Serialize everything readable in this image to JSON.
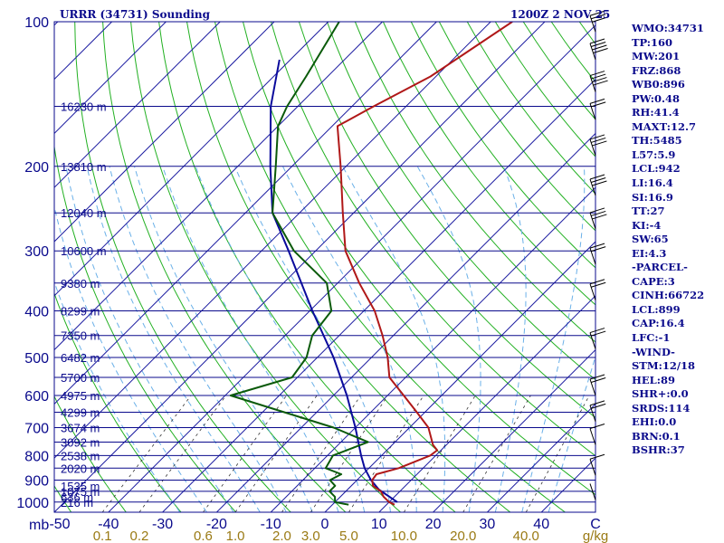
{
  "header": {
    "title": "URRR (34731) Sounding",
    "valid_time": "1200Z  2 NOV 25"
  },
  "indices": [
    "WMO:34731",
    "TP:160",
    "MW:201",
    "FRZ:868",
    "WB0:896",
    "PW:0.48",
    "RH:41.4",
    "MAXT:12.7",
    "TH:5485",
    "L57:5.9",
    "LCL:942",
    "LI:16.4",
    "SI:16.9",
    "TT:27",
    "KI:-4",
    "SW:65",
    "EI:4.3",
    "-PARCEL-",
    "CAPE:3",
    "CINH:66722",
    "LCL:899",
    "CAP:16.4",
    "LFC:-1",
    "-WIND-",
    "STM:12/18",
    "HEL:89",
    "SHR+:0.0",
    "SRDS:114",
    "EHI:0.0",
    "BRN:0.1",
    "BSHR:37"
  ],
  "colors": {
    "isobar": "#0a0a8c",
    "isotherm": "#1a1aa0",
    "dry_adiabat": "#22b022",
    "moist_adiabat": "#6ab0e8",
    "mixing_ratio": "#333333",
    "temperature": "#b01818",
    "dewpoint": "#0a5a0a",
    "parcel": "#0a0a9c",
    "wind_barb": "#000000",
    "label": "#0a0a8c",
    "mixing_label": "#9a7a14"
  },
  "chart_data": {
    "type": "skew-t",
    "title": "URRR (34731) Sounding",
    "x_unit": "C",
    "pressure_range": [
      1050,
      100
    ],
    "temperature_range_at_bottom": [
      -50,
      50
    ],
    "pressure_axis_ticks": [
      "100",
      "200",
      "300",
      "400",
      "500",
      "600",
      "700",
      "800",
      "900",
      "1000"
    ],
    "pressure_axis_label": "mb",
    "temperature_axis_ticks": [
      "-50",
      "-40",
      "-30",
      "-20",
      "-10",
      "0",
      "10",
      "20",
      "30",
      "40",
      "C"
    ],
    "mixing_ratio_ticks": [
      "0.1",
      "0.2",
      "0.6",
      "1.0",
      "2.0",
      "3.0",
      "5.0",
      "10.0",
      "20.0",
      "40.0",
      "g/kg"
    ],
    "height_levels": [
      {
        "p": 1000,
        "label": "216 m"
      },
      {
        "p": 975,
        "label": "636 m"
      },
      {
        "p": 950,
        "label": "1075 m"
      },
      {
        "p": 925,
        "label": "1535 m"
      },
      {
        "p": 850,
        "label": "2020 m"
      },
      {
        "p": 800,
        "label": "2538 m"
      },
      {
        "p": 750,
        "label": "3092 m"
      },
      {
        "p": 700,
        "label": "3674 m"
      },
      {
        "p": 650,
        "label": "4299 m"
      },
      {
        "p": 600,
        "label": "4975 m"
      },
      {
        "p": 550,
        "label": "5700 m"
      },
      {
        "p": 500,
        "label": "6482 m"
      },
      {
        "p": 450,
        "label": "7350 m"
      },
      {
        "p": 400,
        "label": "8299 m"
      },
      {
        "p": 350,
        "label": "9380 m"
      },
      {
        "p": 300,
        "label": "10600 m"
      },
      {
        "p": 250,
        "label": "12040 m"
      },
      {
        "p": 200,
        "label": "13810 m"
      },
      {
        "p": 150,
        "label": "16230 m"
      }
    ],
    "temperature_profile": [
      {
        "p": 1013,
        "t": 11.5
      },
      {
        "p": 1000,
        "t": 10.0
      },
      {
        "p": 975,
        "t": 8.0
      },
      {
        "p": 950,
        "t": 6.5
      },
      {
        "p": 925,
        "t": 4.0
      },
      {
        "p": 900,
        "t": 2.8
      },
      {
        "p": 875,
        "t": 2.5
      },
      {
        "p": 850,
        "t": 5.5
      },
      {
        "p": 800,
        "t": 9.0
      },
      {
        "p": 780,
        "t": 9.3
      },
      {
        "p": 760,
        "t": 7.5
      },
      {
        "p": 700,
        "t": 3.5
      },
      {
        "p": 650,
        "t": -1.5
      },
      {
        "p": 600,
        "t": -7.0
      },
      {
        "p": 550,
        "t": -13.0
      },
      {
        "p": 500,
        "t": -17.0
      },
      {
        "p": 450,
        "t": -22.0
      },
      {
        "p": 400,
        "t": -28.0
      },
      {
        "p": 350,
        "t": -36.0
      },
      {
        "p": 300,
        "t": -44.5
      },
      {
        "p": 250,
        "t": -52.0
      },
      {
        "p": 200,
        "t": -61.0
      },
      {
        "p": 165,
        "t": -69.0
      },
      {
        "p": 150,
        "t": -66.0
      },
      {
        "p": 130,
        "t": -61.0
      },
      {
        "p": 100,
        "t": -56.0
      }
    ],
    "dewpoint_profile": [
      {
        "p": 1013,
        "t": 3.0
      },
      {
        "p": 1000,
        "t": 0.0
      },
      {
        "p": 975,
        "t": -1.0
      },
      {
        "p": 950,
        "t": -3.0
      },
      {
        "p": 925,
        "t": -3.0
      },
      {
        "p": 900,
        "t": -5.0
      },
      {
        "p": 875,
        "t": -4.0
      },
      {
        "p": 850,
        "t": -8.0
      },
      {
        "p": 800,
        "t": -9.0
      },
      {
        "p": 750,
        "t": -5.0
      },
      {
        "p": 700,
        "t": -14.0
      },
      {
        "p": 650,
        "t": -26.0
      },
      {
        "p": 600,
        "t": -39.0
      },
      {
        "p": 550,
        "t": -31.0
      },
      {
        "p": 500,
        "t": -32.0
      },
      {
        "p": 450,
        "t": -35.0
      },
      {
        "p": 400,
        "t": -36.0
      },
      {
        "p": 350,
        "t": -42.0
      },
      {
        "p": 300,
        "t": -54.0
      },
      {
        "p": 250,
        "t": -65.0
      },
      {
        "p": 200,
        "t": -73.0
      },
      {
        "p": 165,
        "t": -80.0
      },
      {
        "p": 150,
        "t": -82.0
      },
      {
        "p": 130,
        "t": -84.0
      },
      {
        "p": 100,
        "t": -88.0
      }
    ],
    "parcel_profile": [
      {
        "p": 1000,
        "t": 11.5
      },
      {
        "p": 942,
        "t": 5.8
      },
      {
        "p": 899,
        "t": 2.5
      },
      {
        "p": 850,
        "t": -0.8
      },
      {
        "p": 800,
        "t": -3.8
      },
      {
        "p": 700,
        "t": -10.0
      },
      {
        "p": 600,
        "t": -17.5
      },
      {
        "p": 500,
        "t": -27.0
      },
      {
        "p": 400,
        "t": -39.5
      },
      {
        "p": 300,
        "t": -55.0
      },
      {
        "p": 250,
        "t": -65.0
      },
      {
        "p": 200,
        "t": -74.0
      },
      {
        "p": 150,
        "t": -85.0
      },
      {
        "p": 120,
        "t": -92.0
      }
    ],
    "wind_levels": [
      {
        "p": 990,
        "barbs": 0
      },
      {
        "p": 880,
        "barbs": 1
      },
      {
        "p": 760,
        "barbs": 1
      },
      {
        "p": 680,
        "barbs": 2
      },
      {
        "p": 600,
        "barbs": 2
      },
      {
        "p": 480,
        "barbs": 2
      },
      {
        "p": 380,
        "barbs": 2
      },
      {
        "p": 320,
        "barbs": 2
      },
      {
        "p": 270,
        "barbs": 3
      },
      {
        "p": 230,
        "barbs": 3
      },
      {
        "p": 190,
        "barbs": 3
      },
      {
        "p": 160,
        "barbs": 2
      },
      {
        "p": 140,
        "barbs": 4
      },
      {
        "p": 120,
        "barbs": 4
      },
      {
        "p": 105,
        "barbs": 3
      }
    ]
  }
}
